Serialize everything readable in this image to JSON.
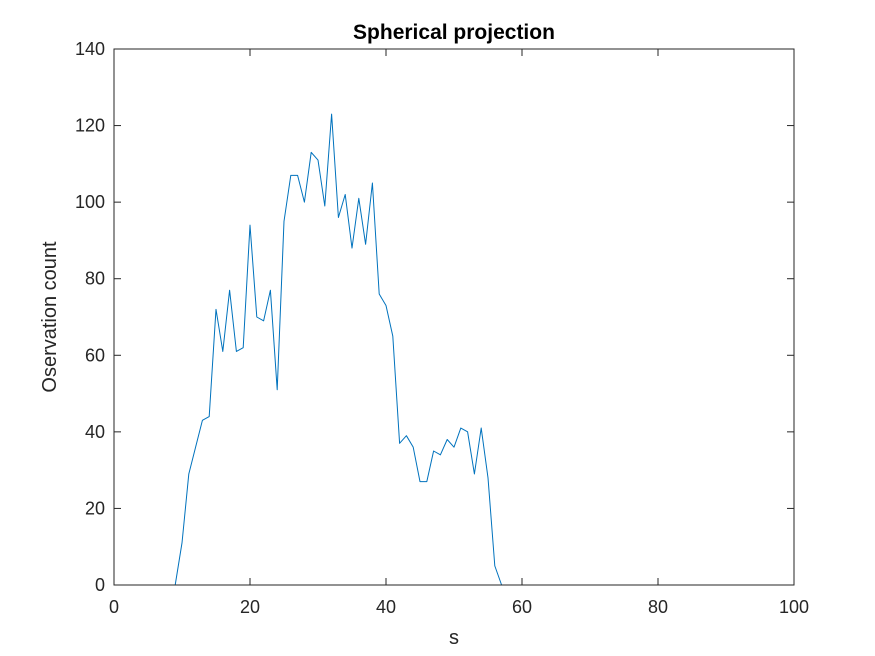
{
  "chart_data": {
    "type": "line",
    "title": "Spherical projection",
    "xlabel": "s",
    "ylabel": "Oservation count",
    "xlim": [
      0,
      100
    ],
    "ylim": [
      0,
      140
    ],
    "xticks": [
      0,
      20,
      40,
      60,
      80,
      100
    ],
    "yticks": [
      0,
      20,
      40,
      60,
      80,
      100,
      120,
      140
    ],
    "grid": false,
    "series": [
      {
        "color": "#0072bd",
        "x": [
          1,
          2,
          3,
          4,
          5,
          6,
          7,
          8,
          9,
          10,
          11,
          12,
          13,
          14,
          15,
          16,
          17,
          18,
          19,
          20,
          21,
          22,
          23,
          24,
          25,
          26,
          27,
          28,
          29,
          30,
          31,
          32,
          33,
          34,
          35,
          36,
          37,
          38,
          39,
          40,
          41,
          42,
          43,
          44,
          45,
          46,
          47,
          48,
          49,
          50,
          51,
          52,
          53,
          54,
          55,
          56,
          57,
          58,
          59,
          60,
          61,
          62,
          63,
          64,
          65,
          66,
          67,
          68,
          69,
          70,
          71,
          72,
          73,
          74,
          75,
          76,
          77,
          78,
          79,
          80,
          81,
          82,
          83,
          84,
          85,
          86,
          87,
          88,
          89,
          90,
          91,
          92,
          93,
          94,
          95,
          96,
          97,
          98,
          99,
          100
        ],
        "values": [
          0,
          0,
          0,
          0,
          0,
          0,
          0,
          0,
          0,
          11,
          29,
          36,
          43,
          44,
          72,
          61,
          77,
          61,
          62,
          94,
          70,
          69,
          77,
          51,
          95,
          107,
          107,
          100,
          113,
          111,
          99,
          123,
          96,
          102,
          88,
          101,
          89,
          105,
          76,
          73,
          65,
          37,
          39,
          36,
          27,
          27,
          35,
          34,
          38,
          36,
          41,
          40,
          29,
          41,
          28,
          5,
          0,
          0,
          0,
          0,
          0,
          0,
          0,
          0,
          0,
          0,
          0,
          0,
          0,
          0,
          0,
          0,
          0,
          0,
          0,
          0,
          0,
          0,
          0,
          0,
          0,
          0,
          0,
          0,
          0,
          0,
          0,
          0,
          0,
          0,
          0,
          0,
          0,
          0,
          0,
          0,
          0,
          0,
          0,
          0
        ]
      }
    ]
  }
}
